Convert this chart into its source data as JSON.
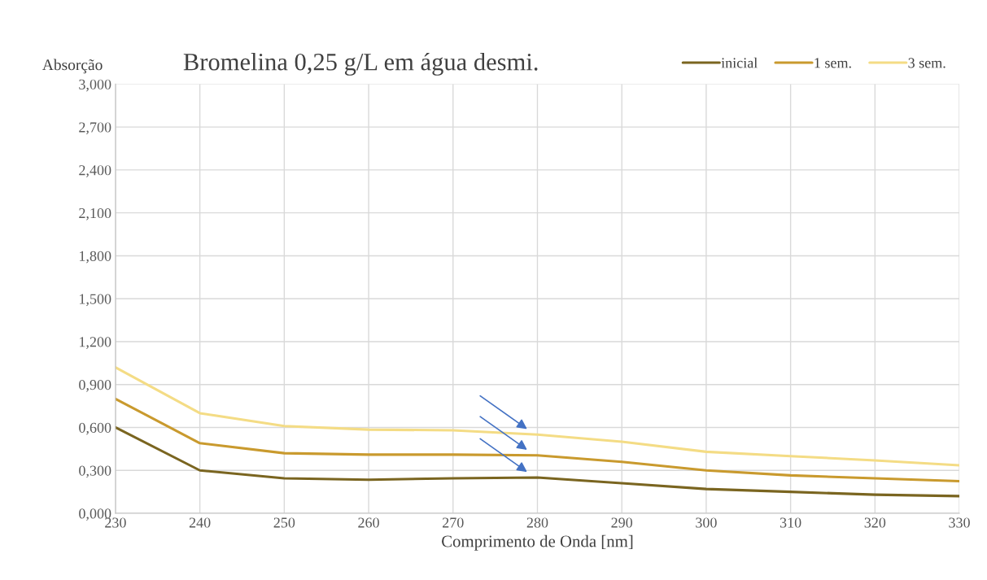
{
  "chart_data": {
    "type": "line",
    "title": "Bromelina 0,25 g/L em água desmi.",
    "xlabel": "Comprimento de Onda [nm]",
    "ylabel": "Absorção",
    "x": [
      230,
      240,
      250,
      260,
      270,
      280,
      290,
      300,
      310,
      320,
      330
    ],
    "series": [
      {
        "name": "inicial",
        "color": "#7a6520",
        "values": [
          0.6,
          0.3,
          0.245,
          0.235,
          0.245,
          0.25,
          0.21,
          0.17,
          0.15,
          0.13,
          0.12
        ]
      },
      {
        "name": "1 sem.",
        "color": "#c99a2e",
        "values": [
          0.8,
          0.49,
          0.42,
          0.41,
          0.41,
          0.405,
          0.36,
          0.3,
          0.265,
          0.245,
          0.225
        ]
      },
      {
        "name": "3 sem.",
        "color": "#f4dc85",
        "values": [
          1.02,
          0.7,
          0.61,
          0.585,
          0.58,
          0.55,
          0.5,
          0.43,
          0.4,
          0.37,
          0.335
        ]
      }
    ],
    "xlim": [
      230,
      330
    ],
    "xticks": [
      230,
      240,
      250,
      260,
      270,
      280,
      290,
      300,
      310,
      320,
      330
    ],
    "ylim": [
      0,
      3
    ],
    "yticks": [
      {
        "value": 0,
        "label": "0,000"
      },
      {
        "value": 0.3,
        "label": "0,300"
      },
      {
        "value": 0.6,
        "label": "0,600"
      },
      {
        "value": 0.9,
        "label": "0,900"
      },
      {
        "value": 1.2,
        "label": "1,200"
      },
      {
        "value": 1.5,
        "label": "1,500"
      },
      {
        "value": 1.8,
        "label": "1,800"
      },
      {
        "value": 2.1,
        "label": "2,100"
      },
      {
        "value": 2.4,
        "label": "2,400"
      },
      {
        "value": 2.7,
        "label": "2,700"
      },
      {
        "value": 3.0,
        "label": "3,000"
      }
    ],
    "grid": true,
    "legend": "top right",
    "marker": "none",
    "line_style": "solid"
  }
}
